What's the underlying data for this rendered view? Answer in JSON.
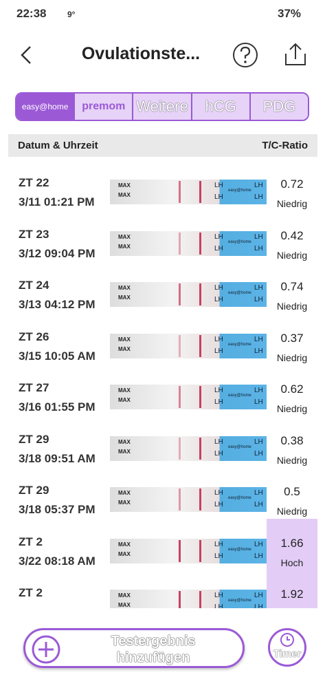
{
  "status_bar": {
    "time": "22:38",
    "temperature": "9°",
    "battery": "37%"
  },
  "header": {
    "title": "Ovulationste..."
  },
  "tabs": [
    "easy@home",
    "premom",
    "Weitere",
    "hCG",
    "PDG"
  ],
  "table": {
    "columns": [
      "Datum & Uhrzeit",
      "T/C-Ratio"
    ],
    "strip_labels": {
      "max": "MAX",
      "lh": "LH",
      "brand": "easy@home"
    },
    "rows": [
      {
        "cycle_day": "ZT 22",
        "date": "3/11",
        "time": "01:21 PM",
        "ratio": 0.72,
        "level": "Niedrig"
      },
      {
        "cycle_day": "ZT 23",
        "date": "3/12",
        "time": "09:04 PM",
        "ratio": 0.42,
        "level": "Niedrig"
      },
      {
        "cycle_day": "ZT 24",
        "date": "3/13",
        "time": "04:12 PM",
        "ratio": 0.74,
        "level": "Niedrig"
      },
      {
        "cycle_day": "ZT 26",
        "date": "3/15",
        "time": "10:05 AM",
        "ratio": 0.37,
        "level": "Niedrig"
      },
      {
        "cycle_day": "ZT 27",
        "date": "3/16",
        "time": "01:55 PM",
        "ratio": 0.62,
        "level": "Niedrig"
      },
      {
        "cycle_day": "ZT 29",
        "date": "3/18",
        "time": "09:51 AM",
        "ratio": 0.38,
        "level": "Niedrig"
      },
      {
        "cycle_day": "ZT 29",
        "date": "3/18",
        "time": "05:37 PM",
        "ratio": 0.5,
        "level": "Niedrig"
      },
      {
        "cycle_day": "ZT 2",
        "date": "3/22",
        "time": "08:18 AM",
        "ratio": 1.66,
        "level": "Hoch"
      },
      {
        "cycle_day": "ZT 2",
        "ratio": 1.92
      }
    ]
  },
  "footer": {
    "add_button": "Testergebnis hinzufügen",
    "timer": "Timer"
  }
}
